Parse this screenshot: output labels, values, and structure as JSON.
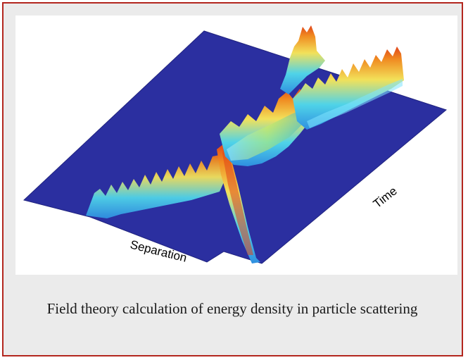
{
  "figure": {
    "axis_labels": {
      "separation": "Separation",
      "time": "Time"
    },
    "colors": {
      "plane": "#2b2fa0",
      "plane_edge": "#20237f",
      "ridge_low": "#4fd3e8",
      "ridge_mid": "#f2e15a",
      "ridge_high": "#f08a20",
      "ridge_peak": "#e0441a"
    }
  },
  "caption": "Field theory calculation of energy density in particle scattering",
  "border_color": "#b3261e"
}
